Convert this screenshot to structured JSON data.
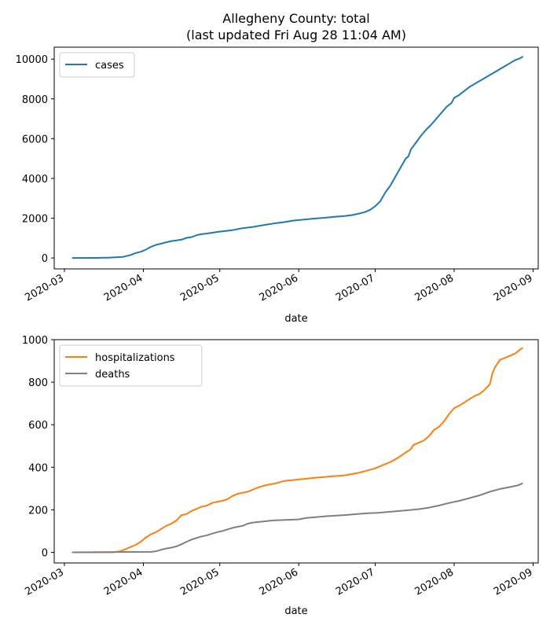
{
  "figure": {
    "title_line1": "Allegheny County: total",
    "title_line2": "(last updated Fri Aug 28 11:04 AM)"
  },
  "chart_data": [
    {
      "type": "line",
      "xlabel": "date",
      "ylabel": "",
      "x_ticks": [
        "2020-03",
        "2020-04",
        "2020-05",
        "2020-06",
        "2020-07",
        "2020-08",
        "2020-09"
      ],
      "y_ticks": [
        0,
        2000,
        4000,
        6000,
        8000,
        10000
      ],
      "xlim": [
        "2020-02-26",
        "2020-09-03"
      ],
      "ylim": [
        -550,
        10600
      ],
      "legend_position": "upper-left",
      "grid": false,
      "series": [
        {
          "name": "cases",
          "color": "#1f77b4",
          "points": [
            [
              "2020-03-04",
              0
            ],
            [
              "2020-03-14",
              5
            ],
            [
              "2020-03-18",
              15
            ],
            [
              "2020-03-21",
              30
            ],
            [
              "2020-03-24",
              55
            ],
            [
              "2020-03-27",
              150
            ],
            [
              "2020-03-29",
              250
            ],
            [
              "2020-03-31",
              310
            ],
            [
              "2020-04-02",
              420
            ],
            [
              "2020-04-04",
              560
            ],
            [
              "2020-04-06",
              660
            ],
            [
              "2020-04-08",
              720
            ],
            [
              "2020-04-10",
              790
            ],
            [
              "2020-04-12",
              850
            ],
            [
              "2020-04-14",
              880
            ],
            [
              "2020-04-16",
              920
            ],
            [
              "2020-04-18",
              1010
            ],
            [
              "2020-04-20",
              1050
            ],
            [
              "2020-04-22",
              1150
            ],
            [
              "2020-04-24",
              1200
            ],
            [
              "2020-04-26",
              1230
            ],
            [
              "2020-04-28",
              1270
            ],
            [
              "2020-04-30",
              1310
            ],
            [
              "2020-05-02",
              1340
            ],
            [
              "2020-05-06",
              1400
            ],
            [
              "2020-05-10",
              1500
            ],
            [
              "2020-05-14",
              1560
            ],
            [
              "2020-05-18",
              1650
            ],
            [
              "2020-05-22",
              1730
            ],
            [
              "2020-05-26",
              1800
            ],
            [
              "2020-05-30",
              1880
            ],
            [
              "2020-06-03",
              1930
            ],
            [
              "2020-06-07",
              1980
            ],
            [
              "2020-06-11",
              2020
            ],
            [
              "2020-06-15",
              2070
            ],
            [
              "2020-06-19",
              2110
            ],
            [
              "2020-06-22",
              2160
            ],
            [
              "2020-06-25",
              2240
            ],
            [
              "2020-06-27",
              2310
            ],
            [
              "2020-06-29",
              2420
            ],
            [
              "2020-07-01",
              2600
            ],
            [
              "2020-07-03",
              2850
            ],
            [
              "2020-07-05",
              3300
            ],
            [
              "2020-07-07",
              3650
            ],
            [
              "2020-07-09",
              4100
            ],
            [
              "2020-07-11",
              4550
            ],
            [
              "2020-07-13",
              5000
            ],
            [
              "2020-07-14",
              5100
            ],
            [
              "2020-07-15",
              5450
            ],
            [
              "2020-07-17",
              5800
            ],
            [
              "2020-07-19",
              6150
            ],
            [
              "2020-07-21",
              6450
            ],
            [
              "2020-07-23",
              6700
            ],
            [
              "2020-07-25",
              7000
            ],
            [
              "2020-07-27",
              7300
            ],
            [
              "2020-07-29",
              7600
            ],
            [
              "2020-07-31",
              7800
            ],
            [
              "2020-08-01",
              8050
            ],
            [
              "2020-08-03",
              8200
            ],
            [
              "2020-08-05",
              8400
            ],
            [
              "2020-08-07",
              8600
            ],
            [
              "2020-08-09",
              8750
            ],
            [
              "2020-08-11",
              8900
            ],
            [
              "2020-08-13",
              9050
            ],
            [
              "2020-08-15",
              9200
            ],
            [
              "2020-08-17",
              9350
            ],
            [
              "2020-08-19",
              9500
            ],
            [
              "2020-08-21",
              9650
            ],
            [
              "2020-08-23",
              9800
            ],
            [
              "2020-08-25",
              9950
            ],
            [
              "2020-08-27",
              10050
            ],
            [
              "2020-08-28",
              10130
            ]
          ]
        }
      ]
    },
    {
      "type": "line",
      "xlabel": "date",
      "ylabel": "",
      "x_ticks": [
        "2020-03",
        "2020-04",
        "2020-05",
        "2020-06",
        "2020-07",
        "2020-08",
        "2020-09"
      ],
      "y_ticks": [
        0,
        200,
        400,
        600,
        800,
        1000
      ],
      "xlim": [
        "2020-02-26",
        "2020-09-03"
      ],
      "ylim": [
        -50,
        1000
      ],
      "legend_position": "upper-left",
      "grid": false,
      "series": [
        {
          "name": "hospitalizations",
          "color": "#ff7f0e",
          "points": [
            [
              "2020-03-04",
              0
            ],
            [
              "2020-03-20",
              0
            ],
            [
              "2020-03-23",
              5
            ],
            [
              "2020-03-25",
              15
            ],
            [
              "2020-03-27",
              25
            ],
            [
              "2020-03-29",
              35
            ],
            [
              "2020-03-31",
              50
            ],
            [
              "2020-04-02",
              70
            ],
            [
              "2020-04-04",
              85
            ],
            [
              "2020-04-06",
              95
            ],
            [
              "2020-04-08",
              110
            ],
            [
              "2020-04-10",
              125
            ],
            [
              "2020-04-12",
              135
            ],
            [
              "2020-04-14",
              150
            ],
            [
              "2020-04-16",
              175
            ],
            [
              "2020-04-18",
              180
            ],
            [
              "2020-04-20",
              195
            ],
            [
              "2020-04-22",
              205
            ],
            [
              "2020-04-24",
              215
            ],
            [
              "2020-04-26",
              220
            ],
            [
              "2020-04-28",
              232
            ],
            [
              "2020-04-30",
              238
            ],
            [
              "2020-05-02",
              242
            ],
            [
              "2020-05-04",
              250
            ],
            [
              "2020-05-06",
              265
            ],
            [
              "2020-05-08",
              275
            ],
            [
              "2020-05-10",
              280
            ],
            [
              "2020-05-12",
              285
            ],
            [
              "2020-05-14",
              295
            ],
            [
              "2020-05-16",
              305
            ],
            [
              "2020-05-18",
              312
            ],
            [
              "2020-05-20",
              318
            ],
            [
              "2020-05-22",
              322
            ],
            [
              "2020-05-24",
              328
            ],
            [
              "2020-05-26",
              335
            ],
            [
              "2020-05-28",
              338
            ],
            [
              "2020-05-30",
              340
            ],
            [
              "2020-06-03",
              345
            ],
            [
              "2020-06-07",
              350
            ],
            [
              "2020-06-11",
              354
            ],
            [
              "2020-06-15",
              358
            ],
            [
              "2020-06-19",
              362
            ],
            [
              "2020-06-22",
              368
            ],
            [
              "2020-06-25",
              375
            ],
            [
              "2020-06-28",
              385
            ],
            [
              "2020-07-01",
              395
            ],
            [
              "2020-07-04",
              410
            ],
            [
              "2020-07-07",
              425
            ],
            [
              "2020-07-10",
              445
            ],
            [
              "2020-07-13",
              470
            ],
            [
              "2020-07-15",
              485
            ],
            [
              "2020-07-16",
              505
            ],
            [
              "2020-07-18",
              515
            ],
            [
              "2020-07-20",
              525
            ],
            [
              "2020-07-22",
              545
            ],
            [
              "2020-07-24",
              575
            ],
            [
              "2020-07-26",
              590
            ],
            [
              "2020-07-28",
              615
            ],
            [
              "2020-07-30",
              650
            ],
            [
              "2020-08-01",
              678
            ],
            [
              "2020-08-03",
              690
            ],
            [
              "2020-08-05",
              705
            ],
            [
              "2020-08-07",
              720
            ],
            [
              "2020-08-09",
              735
            ],
            [
              "2020-08-11",
              745
            ],
            [
              "2020-08-13",
              765
            ],
            [
              "2020-08-15",
              790
            ],
            [
              "2020-08-16",
              840
            ],
            [
              "2020-08-17",
              870
            ],
            [
              "2020-08-19",
              905
            ],
            [
              "2020-08-21",
              915
            ],
            [
              "2020-08-23",
              925
            ],
            [
              "2020-08-25",
              935
            ],
            [
              "2020-08-27",
              955
            ],
            [
              "2020-08-28",
              962
            ]
          ]
        },
        {
          "name": "deaths",
          "color": "#7f7f7f",
          "points": [
            [
              "2020-03-04",
              0
            ],
            [
              "2020-04-04",
              2
            ],
            [
              "2020-04-06",
              5
            ],
            [
              "2020-04-08",
              12
            ],
            [
              "2020-04-10",
              18
            ],
            [
              "2020-04-12",
              22
            ],
            [
              "2020-04-14",
              28
            ],
            [
              "2020-04-16",
              38
            ],
            [
              "2020-04-18",
              50
            ],
            [
              "2020-04-20",
              60
            ],
            [
              "2020-04-22",
              68
            ],
            [
              "2020-04-24",
              75
            ],
            [
              "2020-04-26",
              80
            ],
            [
              "2020-04-28",
              88
            ],
            [
              "2020-04-30",
              95
            ],
            [
              "2020-05-02",
              100
            ],
            [
              "2020-05-04",
              108
            ],
            [
              "2020-05-06",
              115
            ],
            [
              "2020-05-08",
              120
            ],
            [
              "2020-05-10",
              125
            ],
            [
              "2020-05-12",
              135
            ],
            [
              "2020-05-14",
              140
            ],
            [
              "2020-05-18",
              145
            ],
            [
              "2020-05-22",
              150
            ],
            [
              "2020-05-26",
              152
            ],
            [
              "2020-06-01",
              155
            ],
            [
              "2020-06-04",
              162
            ],
            [
              "2020-06-08",
              166
            ],
            [
              "2020-06-12",
              170
            ],
            [
              "2020-06-16",
              173
            ],
            [
              "2020-06-20",
              176
            ],
            [
              "2020-06-24",
              180
            ],
            [
              "2020-06-28",
              184
            ],
            [
              "2020-07-02",
              186
            ],
            [
              "2020-07-06",
              190
            ],
            [
              "2020-07-10",
              194
            ],
            [
              "2020-07-14",
              198
            ],
            [
              "2020-07-18",
              203
            ],
            [
              "2020-07-22",
              210
            ],
            [
              "2020-07-26",
              220
            ],
            [
              "2020-07-30",
              232
            ],
            [
              "2020-08-03",
              242
            ],
            [
              "2020-08-07",
              255
            ],
            [
              "2020-08-11",
              268
            ],
            [
              "2020-08-15",
              285
            ],
            [
              "2020-08-19",
              298
            ],
            [
              "2020-08-23",
              307
            ],
            [
              "2020-08-26",
              315
            ],
            [
              "2020-08-28",
              325
            ]
          ]
        }
      ]
    }
  ]
}
